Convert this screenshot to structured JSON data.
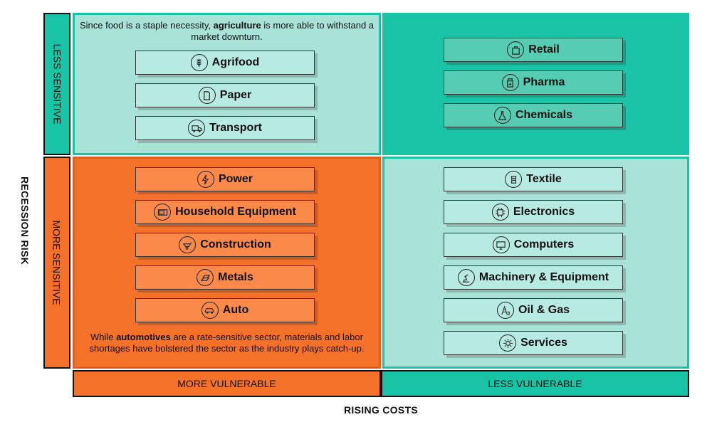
{
  "axes": {
    "y_title": "RECESSION RISK",
    "x_title": "RISING COSTS",
    "row_top": "LESS SENSITIVE",
    "row_bottom": "MORE SENSITIVE",
    "col_left": "MORE VULNERABLE",
    "col_right": "LESS VULNERABLE"
  },
  "notes": {
    "top": {
      "pre": "Since food is a staple necessity, ",
      "bold": "agriculture",
      "post": " is more able to withstand a market downturn."
    },
    "bottom": {
      "pre": "While ",
      "bold": "automotives",
      "post": " are a rate-sensitive sector, materials and labor shortages have bolstered the sector as the industry plays catch-up."
    }
  },
  "quadrants": {
    "top_left": [
      "Agrifood",
      "Paper",
      "Transport"
    ],
    "top_right": [
      "Retail",
      "Pharma",
      "Chemicals"
    ],
    "bottom_left": [
      "Power",
      "Household Equipment",
      "Construction",
      "Metals",
      "Auto"
    ],
    "bottom_right": [
      "Textile",
      "Electronics",
      "Computers",
      "Machinery & Equipment",
      "Oil & Gas",
      "Services"
    ]
  },
  "icons": {
    "agrifood": "wheat-icon",
    "paper": "paper-icon",
    "transport": "truck-icon",
    "retail": "shopping-bag-icon",
    "pharma": "pill-bottle-icon",
    "chemicals": "flask-icon",
    "power": "lightning-icon",
    "household": "microwave-icon",
    "construction": "wheelbarrow-icon",
    "metals": "metal-bars-icon",
    "auto": "car-icon",
    "textile": "thread-spool-icon",
    "electronics": "chip-icon",
    "computers": "monitor-icon",
    "machinery": "robot-arm-icon",
    "oilgas": "oil-rig-icon",
    "services": "gear-wrench-icon"
  },
  "colors": {
    "teal": "#19c4a6",
    "teal_light": "#a9e2d6",
    "orange": "#f4712a"
  }
}
